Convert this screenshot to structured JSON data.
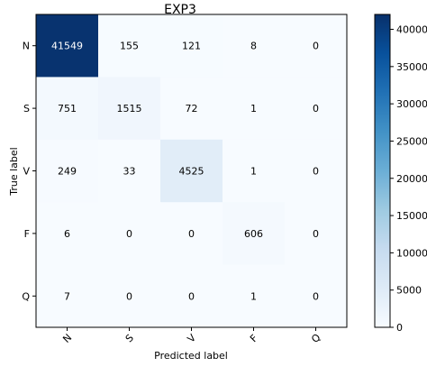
{
  "chart_data": {
    "type": "heatmap",
    "title": "EXP3",
    "xlabel": "Predicted label",
    "ylabel": "True label",
    "x_categories": [
      "N",
      "S",
      "V",
      "F",
      "Q"
    ],
    "y_categories": [
      "N",
      "S",
      "V",
      "F",
      "Q"
    ],
    "values": [
      [
        41549,
        155,
        121,
        8,
        0
      ],
      [
        751,
        1515,
        72,
        1,
        0
      ],
      [
        249,
        33,
        4525,
        1,
        0
      ],
      [
        6,
        0,
        0,
        606,
        0
      ],
      [
        7,
        0,
        0,
        1,
        0
      ]
    ],
    "colorbar": {
      "min": 0,
      "max": 42000,
      "ticks": [
        0,
        5000,
        10000,
        15000,
        20000,
        25000,
        30000,
        35000,
        40000
      ],
      "colormap": "Blues",
      "low_color": "#f7fbff",
      "high_color": "#08306b"
    }
  }
}
